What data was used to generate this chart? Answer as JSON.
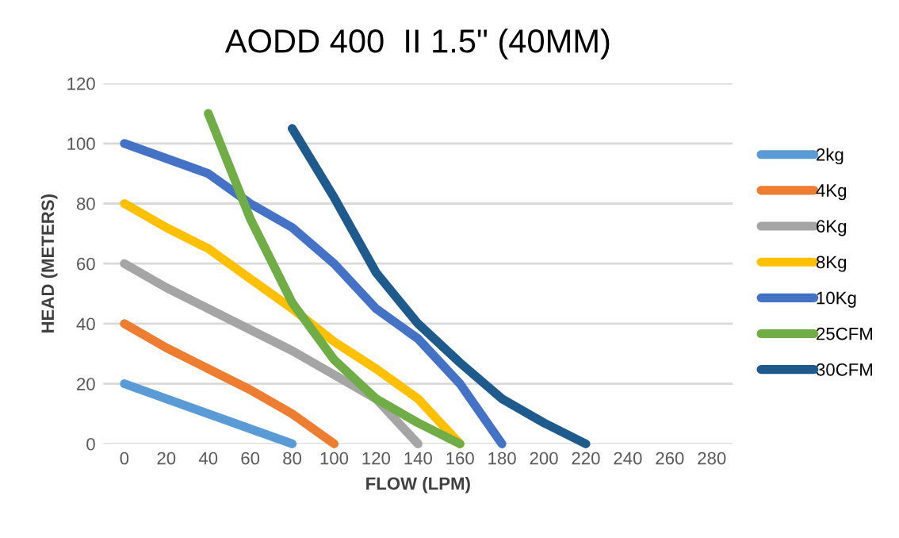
{
  "chart_data": {
    "type": "line",
    "title": "AODD 400  II 1.5\" (40MM)",
    "xlabel": "FLOW (LPM)",
    "ylabel": "HEAD (METERS)",
    "xlim": [
      -10,
      290
    ],
    "xticks": [
      0,
      20,
      40,
      60,
      80,
      100,
      120,
      140,
      160,
      180,
      200,
      220,
      240,
      260,
      280
    ],
    "ylim": [
      0,
      120
    ],
    "yticks": [
      0,
      20,
      40,
      60,
      80,
      100,
      120
    ],
    "grid": "y",
    "legend": "right",
    "marker": "none",
    "line_style": "solid",
    "series": [
      {
        "name": "2kg",
        "color": "#5b9bd5",
        "x": [
          0,
          80
        ],
        "values": [
          20,
          0
        ]
      },
      {
        "name": "4Kg",
        "color": "#ed7d31",
        "x": [
          0,
          20,
          40,
          60,
          80,
          100
        ],
        "values": [
          40,
          32,
          25,
          18,
          10,
          0
        ]
      },
      {
        "name": "6Kg",
        "color": "#a5a5a5",
        "x": [
          0,
          20,
          40,
          60,
          80,
          100,
          120,
          140
        ],
        "values": [
          60,
          52,
          45,
          38,
          31,
          23,
          15,
          0
        ]
      },
      {
        "name": "8Kg",
        "color": "#ffc000",
        "x": [
          0,
          20,
          40,
          60,
          80,
          100,
          120,
          140,
          160
        ],
        "values": [
          80,
          72,
          65,
          55,
          45,
          34,
          25,
          15,
          0
        ]
      },
      {
        "name": "10Kg",
        "color": "#4472c4",
        "x": [
          0,
          40,
          60,
          80,
          100,
          120,
          140,
          160,
          180
        ],
        "values": [
          100,
          90,
          80,
          72,
          60,
          45,
          35,
          20,
          0
        ]
      },
      {
        "name": "25CFM",
        "color": "#70ad47",
        "x": [
          40,
          60,
          80,
          100,
          120,
          140,
          160
        ],
        "values": [
          110,
          75,
          47,
          28,
          15,
          7,
          0
        ]
      },
      {
        "name": "30CFM",
        "color": "#1f5a8c",
        "x": [
          80,
          100,
          120,
          140,
          160,
          180,
          200,
          220
        ],
        "values": [
          105,
          82,
          57,
          40,
          27,
          15,
          7,
          0
        ]
      }
    ]
  }
}
